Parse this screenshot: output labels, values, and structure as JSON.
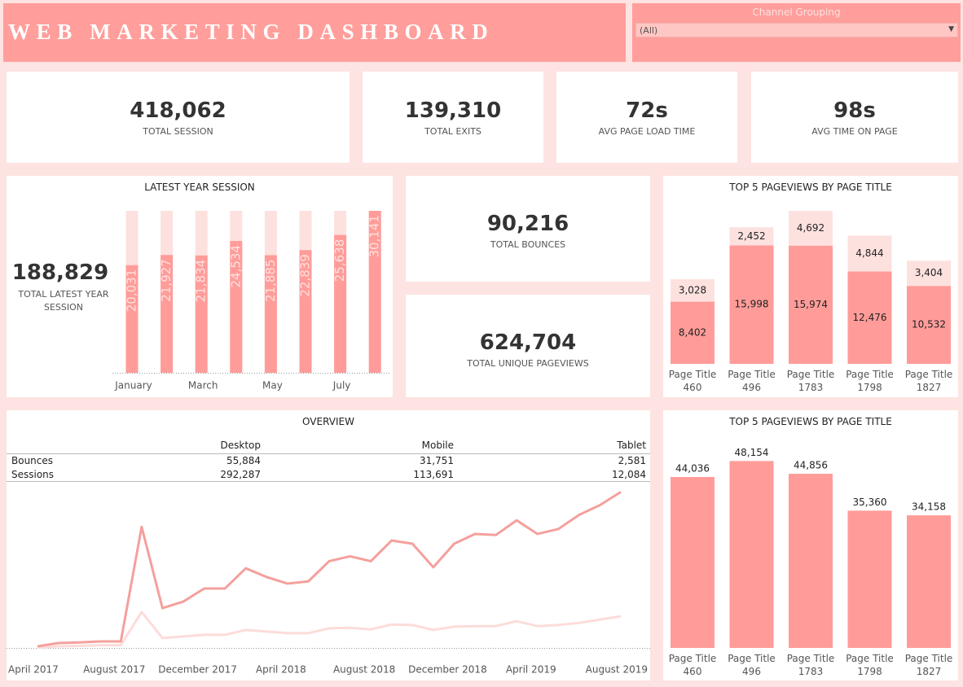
{
  "header": {
    "title": "WEB MARKETING DASHBOARD",
    "filter_label": "Channel Grouping",
    "filter_value": "(All)"
  },
  "kpis": [
    {
      "value": "418,062",
      "label": "TOTAL SESSION"
    },
    {
      "value": "139,310",
      "label": "TOTAL EXITS"
    },
    {
      "value": "72s",
      "label": "AVG PAGE LOAD TIME"
    },
    {
      "value": "98s",
      "label": "AVG TIME ON PAGE"
    },
    {
      "value": "90,216",
      "label": "TOTAL BOUNCES"
    },
    {
      "value": "624,704",
      "label": "TOTAL UNIQUE PAGEVIEWS"
    }
  ],
  "chart_data": [
    {
      "type": "bar",
      "title": "LATEST YEAR SESSION",
      "total_value": "188,829",
      "total_label": "TOTAL LATEST YEAR SESSION",
      "categories": [
        "January",
        null,
        "March",
        null,
        "May",
        null,
        "July",
        null
      ],
      "values": [
        20031,
        21927,
        21834,
        24534,
        21885,
        22839,
        25638,
        30141
      ],
      "value_labels": [
        "20,031",
        "21,927",
        "21,834",
        "24,534",
        "21,885",
        "22,839",
        "25,638",
        "30,141"
      ],
      "color": "#ff9c99",
      "track_color": "#fde1df",
      "ylim": [
        0,
        30141
      ]
    },
    {
      "type": "stacked_bar",
      "title": "TOP  5 PAGEVIEWS BY PAGE TITLE",
      "categories": [
        "Page Title 460",
        "Page Title 496",
        "Page Title 1783",
        "Page Title 1798",
        "Page Title 1827"
      ],
      "series": [
        {
          "color": "#ff9c99",
          "values": [
            8402,
            15998,
            15974,
            12476,
            10532
          ],
          "value_labels": [
            "8,402",
            "15,998",
            "15,974",
            "12,476",
            "10,532"
          ]
        },
        {
          "color": "#fde1df",
          "values": [
            3028,
            2452,
            4692,
            4844,
            3404
          ],
          "value_labels": [
            "3,028",
            "2,452",
            "4,692",
            "4,844",
            "3,404"
          ]
        }
      ],
      "ylim": [
        0,
        21000
      ]
    },
    {
      "type": "line",
      "title": "OVERVIEW",
      "table": {
        "columns": [
          "Desktop",
          "Mobile",
          "Tablet"
        ],
        "rows": [
          {
            "label": "Bounces",
            "values": [
              "55,884",
              "31,751",
              "2,581"
            ]
          },
          {
            "label": "Sessions",
            "values": [
              "292,287",
              "113,691",
              "12,084"
            ]
          }
        ]
      },
      "categories": [
        "April 2017",
        null,
        null,
        null,
        "August 2017",
        null,
        null,
        null,
        "December 2017",
        null,
        null,
        null,
        "April 2018",
        null,
        null,
        null,
        "August 2018",
        null,
        null,
        null,
        "December 2018",
        null,
        null,
        null,
        "April 2019",
        null,
        null,
        null,
        "August 2019"
      ],
      "series": [
        {
          "color": "#f4a09c",
          "values": [
            300,
            900,
            1000,
            1200,
            1200,
            22200,
            7300,
            8500,
            10900,
            10900,
            14600,
            13000,
            11800,
            12200,
            15900,
            16800,
            15900,
            19700,
            19100,
            14800,
            19100,
            20900,
            20700,
            23400,
            20900,
            21800,
            24400,
            26200,
            28600
          ]
        },
        {
          "color": "#fcdcda",
          "values": [
            100,
            300,
            400,
            500,
            500,
            6600,
            1800,
            2100,
            2400,
            2400,
            3300,
            3000,
            2700,
            2700,
            3600,
            3700,
            3400,
            4300,
            4200,
            3300,
            3900,
            4000,
            4000,
            4900,
            4000,
            4200,
            4600,
            5200,
            5800
          ]
        }
      ],
      "ylim": [
        0,
        30000
      ]
    },
    {
      "type": "bar",
      "title": "TOP  5 PAGEVIEWS BY PAGE TITLE",
      "categories": [
        "Page Title 460",
        "Page Title 496",
        "Page Title 1783",
        "Page Title 1798",
        "Page Title 1827"
      ],
      "values": [
        44036,
        48154,
        44856,
        35360,
        34158
      ],
      "value_labels": [
        "44,036",
        "48,154",
        "44,856",
        "35,360",
        "34,158"
      ],
      "color": "#ff9c99",
      "ylim": [
        0,
        52000
      ]
    }
  ]
}
